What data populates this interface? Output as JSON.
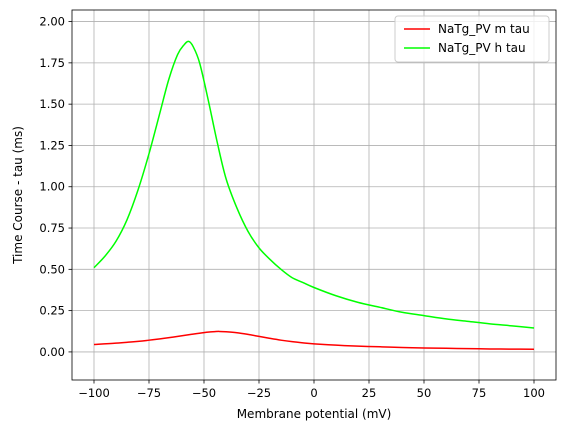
{
  "chart_data": {
    "type": "line",
    "xlabel": "Membrane potential (mV)",
    "ylabel": "Time Course - tau (ms)",
    "xlim": [
      -110,
      110
    ],
    "ylim": [
      -0.17,
      2.07
    ],
    "xticks": [
      -100,
      -75,
      -50,
      -25,
      0,
      25,
      50,
      75,
      100
    ],
    "xtick_labels": [
      "−100",
      "−75",
      "−50",
      "−25",
      "0",
      "25",
      "50",
      "75",
      "100"
    ],
    "yticks": [
      0,
      0.25,
      0.5,
      0.75,
      1.0,
      1.25,
      1.5,
      1.75,
      2.0
    ],
    "ytick_labels": [
      "0.00",
      "0.25",
      "0.50",
      "0.75",
      "1.00",
      "1.25",
      "1.50",
      "1.75",
      "2.00"
    ],
    "grid": true,
    "legend_position": "top-right",
    "series": [
      {
        "name": "NaTg_PV m tau",
        "color": "#ff0000",
        "x": [
          -100,
          -90,
          -80,
          -75,
          -70,
          -65,
          -60,
          -55,
          -50,
          -47,
          -45,
          -43,
          -40,
          -35,
          -30,
          -25,
          -20,
          -15,
          -10,
          -5,
          0,
          10,
          20,
          30,
          40,
          50,
          60,
          70,
          80,
          90,
          100
        ],
        "y": [
          0.045,
          0.053,
          0.064,
          0.071,
          0.079,
          0.088,
          0.098,
          0.108,
          0.117,
          0.121,
          0.123,
          0.124,
          0.122,
          0.116,
          0.106,
          0.094,
          0.082,
          0.071,
          0.062,
          0.055,
          0.049,
          0.041,
          0.035,
          0.031,
          0.027,
          0.024,
          0.022,
          0.02,
          0.018,
          0.017,
          0.016
        ]
      },
      {
        "name": "NaTg_PV h tau",
        "color": "#00ff00",
        "x": [
          -100,
          -95,
          -90,
          -85,
          -80,
          -75,
          -70,
          -66,
          -62,
          -59,
          -57,
          -55,
          -52,
          -48,
          -44,
          -40,
          -35,
          -30,
          -25,
          -20,
          -15,
          -10,
          -5,
          0,
          10,
          20,
          30,
          40,
          50,
          60,
          70,
          80,
          90,
          100
        ],
        "y": [
          0.51,
          0.58,
          0.67,
          0.8,
          0.98,
          1.2,
          1.45,
          1.65,
          1.8,
          1.86,
          1.88,
          1.85,
          1.75,
          1.52,
          1.27,
          1.05,
          0.87,
          0.73,
          0.63,
          0.56,
          0.5,
          0.45,
          0.42,
          0.39,
          0.34,
          0.3,
          0.27,
          0.24,
          0.22,
          0.2,
          0.185,
          0.17,
          0.158,
          0.145
        ]
      }
    ]
  }
}
